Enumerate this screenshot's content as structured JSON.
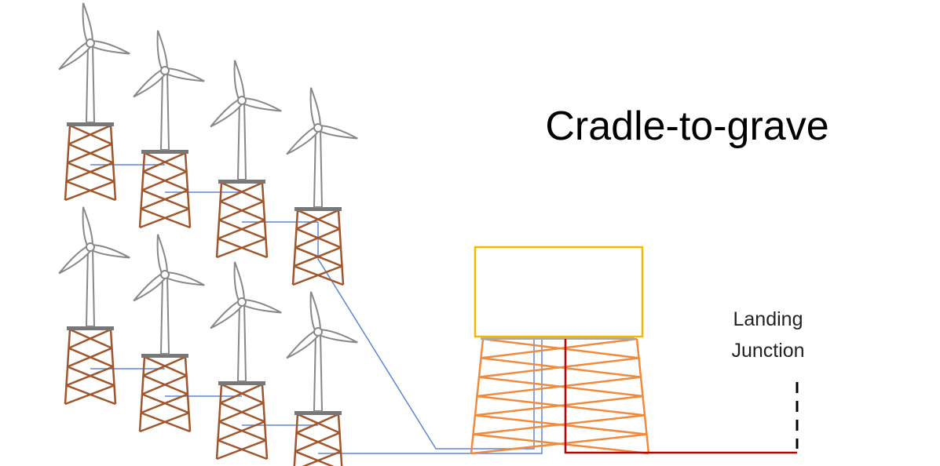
{
  "title": "Cradle-to-grave",
  "landing_label": [
    "Landing",
    "Junction"
  ]
}
